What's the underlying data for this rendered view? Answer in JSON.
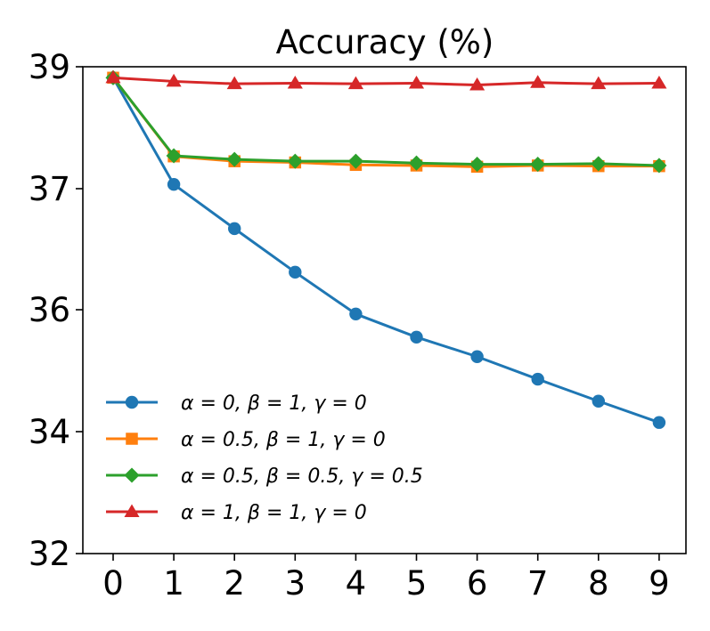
{
  "chart_data": {
    "type": "line",
    "title": "Accuracy (%)",
    "xlabel": "",
    "ylabel": "",
    "x": [
      0,
      1,
      2,
      3,
      4,
      5,
      6,
      7,
      8,
      9
    ],
    "xticks": [
      "0",
      "1",
      "2",
      "3",
      "4",
      "5",
      "6",
      "7",
      "8",
      "9"
    ],
    "yticks": [
      32,
      34,
      36,
      37,
      39
    ],
    "ytick_labels": [
      "32",
      "34",
      "36",
      "37",
      "39"
    ],
    "ylim": [
      32,
      39
    ],
    "xlim": [
      -0.3,
      9.3
    ],
    "grid": false,
    "legend_position": "lower-left",
    "series": [
      {
        "name": "α = 0, β = 1, γ = 0",
        "color": "#1f77b4",
        "marker": "circle",
        "values": [
          38.82,
          37.07,
          36.67,
          36.31,
          35.93,
          35.55,
          35.23,
          34.86,
          34.5,
          34.15
        ]
      },
      {
        "name": "α = 0.5, β = 1, γ = 0",
        "color": "#ff7f0e",
        "marker": "square",
        "values": [
          38.82,
          37.53,
          37.45,
          37.43,
          37.39,
          37.38,
          37.36,
          37.38,
          37.37,
          37.37
        ]
      },
      {
        "name": "α = 0.5, β = 0.5, γ = 0.5",
        "color": "#2ca02c",
        "marker": "diamond",
        "values": [
          38.82,
          37.54,
          37.48,
          37.45,
          37.45,
          37.42,
          37.4,
          37.4,
          37.41,
          37.38
        ]
      },
      {
        "name": "α = 1, β = 1, γ = 0",
        "color": "#d62728",
        "marker": "triangle",
        "values": [
          38.82,
          38.76,
          38.72,
          38.73,
          38.72,
          38.73,
          38.7,
          38.74,
          38.72,
          38.73
        ]
      }
    ]
  }
}
